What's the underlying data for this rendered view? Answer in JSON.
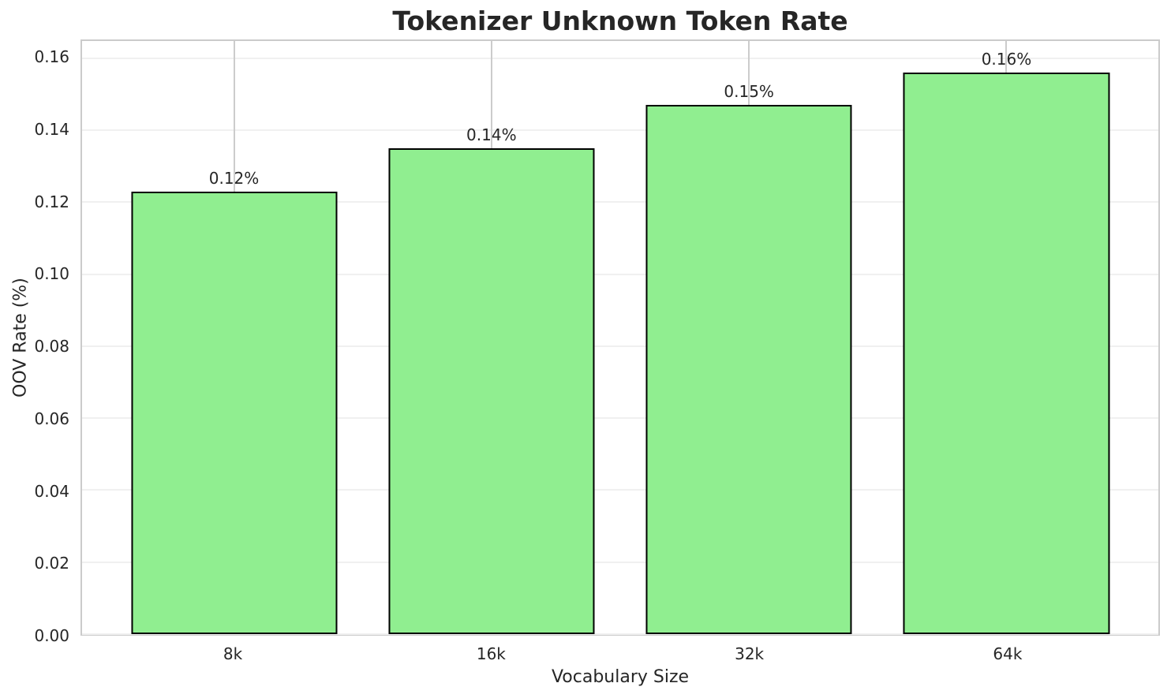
{
  "chart_data": {
    "type": "bar",
    "title": "Tokenizer Unknown Token Rate",
    "xlabel": "Vocabulary Size",
    "ylabel": "OOV Rate (%)",
    "categories": [
      "8k",
      "16k",
      "32k",
      "64k"
    ],
    "values": [
      0.123,
      0.135,
      0.147,
      0.156
    ],
    "bar_labels": [
      "0.12%",
      "0.14%",
      "0.15%",
      "0.16%"
    ],
    "ytick_values": [
      0,
      0.02,
      0.04,
      0.06,
      0.08,
      0.1,
      0.12,
      0.14,
      0.16
    ],
    "ytick_labels": [
      "0.00",
      "0.02",
      "0.04",
      "0.06",
      "0.08",
      "0.10",
      "0.12",
      "0.14",
      "0.16"
    ],
    "ylim": [
      0,
      0.1648
    ],
    "xlim": [
      -0.59,
      3.59
    ],
    "bar_width": 0.8,
    "grid": "both",
    "legend": "none",
    "colors": {
      "bar_fill": "#90EE90",
      "bar_edge": "#000000",
      "grid_horizontal": "#f0f0f0",
      "grid_vertical": "#cccccc",
      "spine": "#cbcbcb",
      "text": "#262626",
      "background": "#ffffff"
    }
  }
}
